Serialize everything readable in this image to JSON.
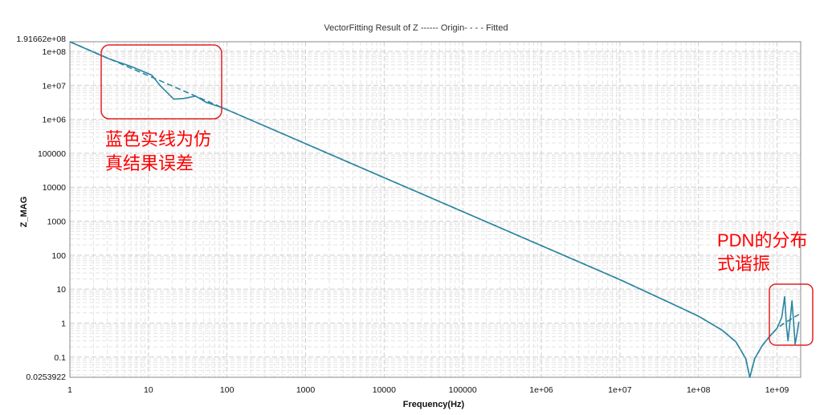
{
  "chart_data": {
    "type": "line",
    "title": "VectorFitting Result of Z ------ Origin- - - - Fitted",
    "xlabel": "Frequency(Hz)",
    "ylabel": "Z_MAG",
    "x_scale": "log",
    "y_scale": "log",
    "xlim": [
      1,
      2000000000
    ],
    "ylim": [
      0.0253922,
      191662000
    ],
    "x_ticks": [
      {
        "value": 1,
        "label": "1"
      },
      {
        "value": 10,
        "label": "10"
      },
      {
        "value": 100,
        "label": "100"
      },
      {
        "value": 1000,
        "label": "1000"
      },
      {
        "value": 10000,
        "label": "10000"
      },
      {
        "value": 100000,
        "label": "100000"
      },
      {
        "value": 1000000,
        "label": "1e+06"
      },
      {
        "value": 10000000,
        "label": "1e+07"
      },
      {
        "value": 100000000,
        "label": "1e+08"
      },
      {
        "value": 1000000000,
        "label": "1e+09"
      }
    ],
    "y_ticks": [
      {
        "value": 191662000,
        "label": "1.91662e+08"
      },
      {
        "value": 100000000,
        "label": "1e+08"
      },
      {
        "value": 10000000,
        "label": "1e+07"
      },
      {
        "value": 1000000,
        "label": "1e+06"
      },
      {
        "value": 100000,
        "label": "100000"
      },
      {
        "value": 10000,
        "label": "10000"
      },
      {
        "value": 1000,
        "label": "1000"
      },
      {
        "value": 100,
        "label": "100"
      },
      {
        "value": 10,
        "label": "10"
      },
      {
        "value": 1,
        "label": "1"
      },
      {
        "value": 0.1,
        "label": "0.1"
      },
      {
        "value": 0.0253922,
        "label": "0.0253922"
      }
    ],
    "grid": true,
    "series": [
      {
        "name": "Origin",
        "style": "solid",
        "color": "#2a86a0",
        "points": [
          [
            1,
            191662000
          ],
          [
            3,
            63000000
          ],
          [
            6,
            36000000
          ],
          [
            11,
            20000000
          ],
          [
            14,
            10000000
          ],
          [
            21,
            3900000
          ],
          [
            28,
            4100000
          ],
          [
            40,
            4800000
          ],
          [
            55,
            3100000
          ],
          [
            80,
            2350000
          ],
          [
            100,
            1910000
          ],
          [
            1000,
            191000
          ],
          [
            10000,
            19100
          ],
          [
            100000,
            1910
          ],
          [
            1000000,
            191
          ],
          [
            10000000,
            19
          ],
          [
            50000000,
            3.4
          ],
          [
            100000000,
            1.6
          ],
          [
            200000000,
            0.62
          ],
          [
            300000000,
            0.28
          ],
          [
            400000000,
            0.09
          ],
          [
            450000000,
            0.0254
          ],
          [
            520000000,
            0.09
          ],
          [
            650000000,
            0.22
          ],
          [
            800000000,
            0.4
          ],
          [
            1000000000,
            0.7
          ],
          [
            1150000000,
            1.5
          ],
          [
            1250000000,
            6
          ],
          [
            1320000000,
            0.8
          ],
          [
            1380000000,
            0.3
          ],
          [
            1450000000,
            0.9
          ],
          [
            1550000000,
            4.5
          ],
          [
            1620000000,
            1.2
          ],
          [
            1700000000,
            0.24
          ],
          [
            1800000000,
            0.5
          ],
          [
            1900000000,
            1.1
          ]
        ]
      },
      {
        "name": "Fitted",
        "style": "dashed",
        "color": "#2a86a0",
        "points": [
          [
            1,
            191662000
          ],
          [
            10,
            19170000
          ],
          [
            100,
            1917000
          ],
          [
            1000,
            191700
          ],
          [
            10000,
            19170
          ],
          [
            100000,
            1917
          ],
          [
            1000000,
            191.7
          ],
          [
            10000000,
            19.1
          ],
          [
            50000000,
            3.4
          ],
          [
            100000000,
            1.6
          ],
          [
            200000000,
            0.62
          ],
          [
            300000000,
            0.28
          ],
          [
            400000000,
            0.09
          ],
          [
            450000000,
            0.0254
          ],
          [
            520000000,
            0.09
          ],
          [
            650000000,
            0.22
          ],
          [
            800000000,
            0.4
          ],
          [
            1000000000,
            0.7
          ],
          [
            1200000000,
            0.95
          ],
          [
            1500000000,
            1.3
          ],
          [
            1900000000,
            1.8
          ]
        ]
      }
    ],
    "annotations": [
      {
        "lines": [
          "蓝色实线为仿",
          "真结果误差"
        ],
        "color": "#ff0000"
      },
      {
        "lines": [
          "PDN的分布",
          "式谐振"
        ],
        "color": "#ff0000"
      }
    ]
  }
}
